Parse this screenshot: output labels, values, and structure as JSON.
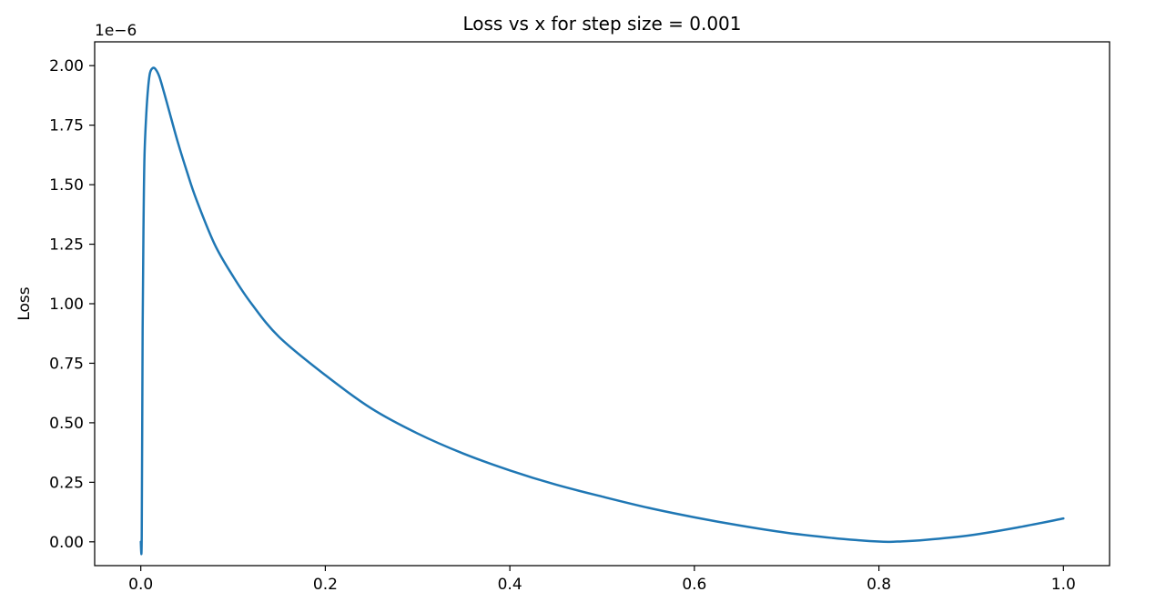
{
  "chart_data": {
    "type": "line",
    "title": "Loss vs x for step size = 0.001",
    "xlabel": "",
    "ylabel": "Loss",
    "y_offset_text": "1e−6",
    "xlim": [
      -0.05,
      1.05
    ],
    "ylim": [
      -0.1,
      2.1
    ],
    "x_ticks": [
      0.0,
      0.2,
      0.4,
      0.6,
      0.8,
      1.0
    ],
    "x_tick_labels": [
      "0.0",
      "0.2",
      "0.4",
      "0.6",
      "0.8",
      "1.0"
    ],
    "y_ticks": [
      0.0,
      0.25,
      0.5,
      0.75,
      1.0,
      1.25,
      1.5,
      1.75,
      2.0
    ],
    "y_tick_labels": [
      "0.00",
      "0.25",
      "0.50",
      "0.75",
      "1.00",
      "1.25",
      "1.50",
      "1.75",
      "2.00"
    ],
    "grid": false,
    "series": [
      {
        "color": "#1f77b4",
        "x": [
          0.0,
          0.001,
          0.002,
          0.003,
          0.004,
          0.006,
          0.008,
          0.01,
          0.013,
          0.016,
          0.02,
          0.025,
          0.03,
          0.04,
          0.05,
          0.06,
          0.08,
          0.1,
          0.12,
          0.15,
          0.2,
          0.25,
          0.3,
          0.35,
          0.4,
          0.45,
          0.5,
          0.55,
          0.6,
          0.65,
          0.7,
          0.75,
          0.78,
          0.8,
          0.81,
          0.82,
          0.85,
          0.9,
          0.95,
          1.0
        ],
        "y": [
          0.0,
          0.02,
          0.9,
          1.35,
          1.62,
          1.8,
          1.91,
          1.97,
          1.99,
          1.985,
          1.955,
          1.89,
          1.82,
          1.68,
          1.555,
          1.44,
          1.25,
          1.115,
          1.0,
          0.86,
          0.7,
          0.56,
          0.455,
          0.37,
          0.3,
          0.24,
          0.19,
          0.143,
          0.103,
          0.068,
          0.038,
          0.016,
          0.006,
          0.001,
          0.0,
          0.001,
          0.008,
          0.028,
          0.06,
          0.098
        ]
      }
    ]
  }
}
